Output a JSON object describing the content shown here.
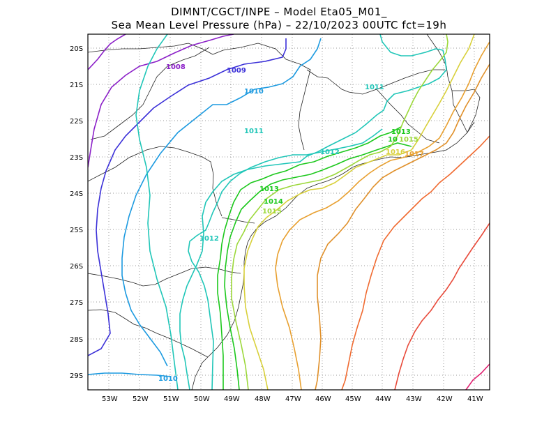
{
  "title": {
    "line1": "DIMNT/CGCT/INPE –  Model Eta05_M01_",
    "line2": "Sea Mean Level Pressure (hPa) – 22/10/2023 00UTC fct=19h"
  },
  "map": {
    "lat_labels": [
      "20S",
      "21S",
      "22S",
      "23S",
      "24S",
      "25S",
      "26S",
      "27S",
      "28S",
      "29S"
    ],
    "lon_labels": [
      "53W",
      "52W",
      "51W",
      "50W",
      "49W",
      "48W",
      "47W",
      "46W",
      "45W",
      "44W",
      "43W",
      "42W",
      "41W"
    ],
    "contour_labels": [
      {
        "text": "1008",
        "color": "#8b1fc8"
      },
      {
        "text": "1009",
        "color": "#3b30d8"
      },
      {
        "text": "1010",
        "color": "#1c9ae0"
      },
      {
        "text": "1011",
        "color": "#20c6b8"
      },
      {
        "text": "1011",
        "color": "#20c6b8"
      },
      {
        "text": "1012",
        "color": "#20c6b8"
      },
      {
        "text": "1012",
        "color": "#20c6b8"
      },
      {
        "text": "1013",
        "color": "#1cc81c"
      },
      {
        "text": "1013",
        "color": "#1cc81c"
      },
      {
        "text": "1014",
        "color": "#1cc81c"
      },
      {
        "text": "1015",
        "color": "#9cd83a"
      },
      {
        "text": "10",
        "color": "#1cc81c"
      },
      {
        "text": "1015",
        "color": "#9cd83a"
      },
      {
        "text": "1016",
        "color": "#d8d03a"
      },
      {
        "text": "1017",
        "color": "#e8a030"
      },
      {
        "text": "1010",
        "color": "#1c9ae0"
      }
    ]
  }
}
